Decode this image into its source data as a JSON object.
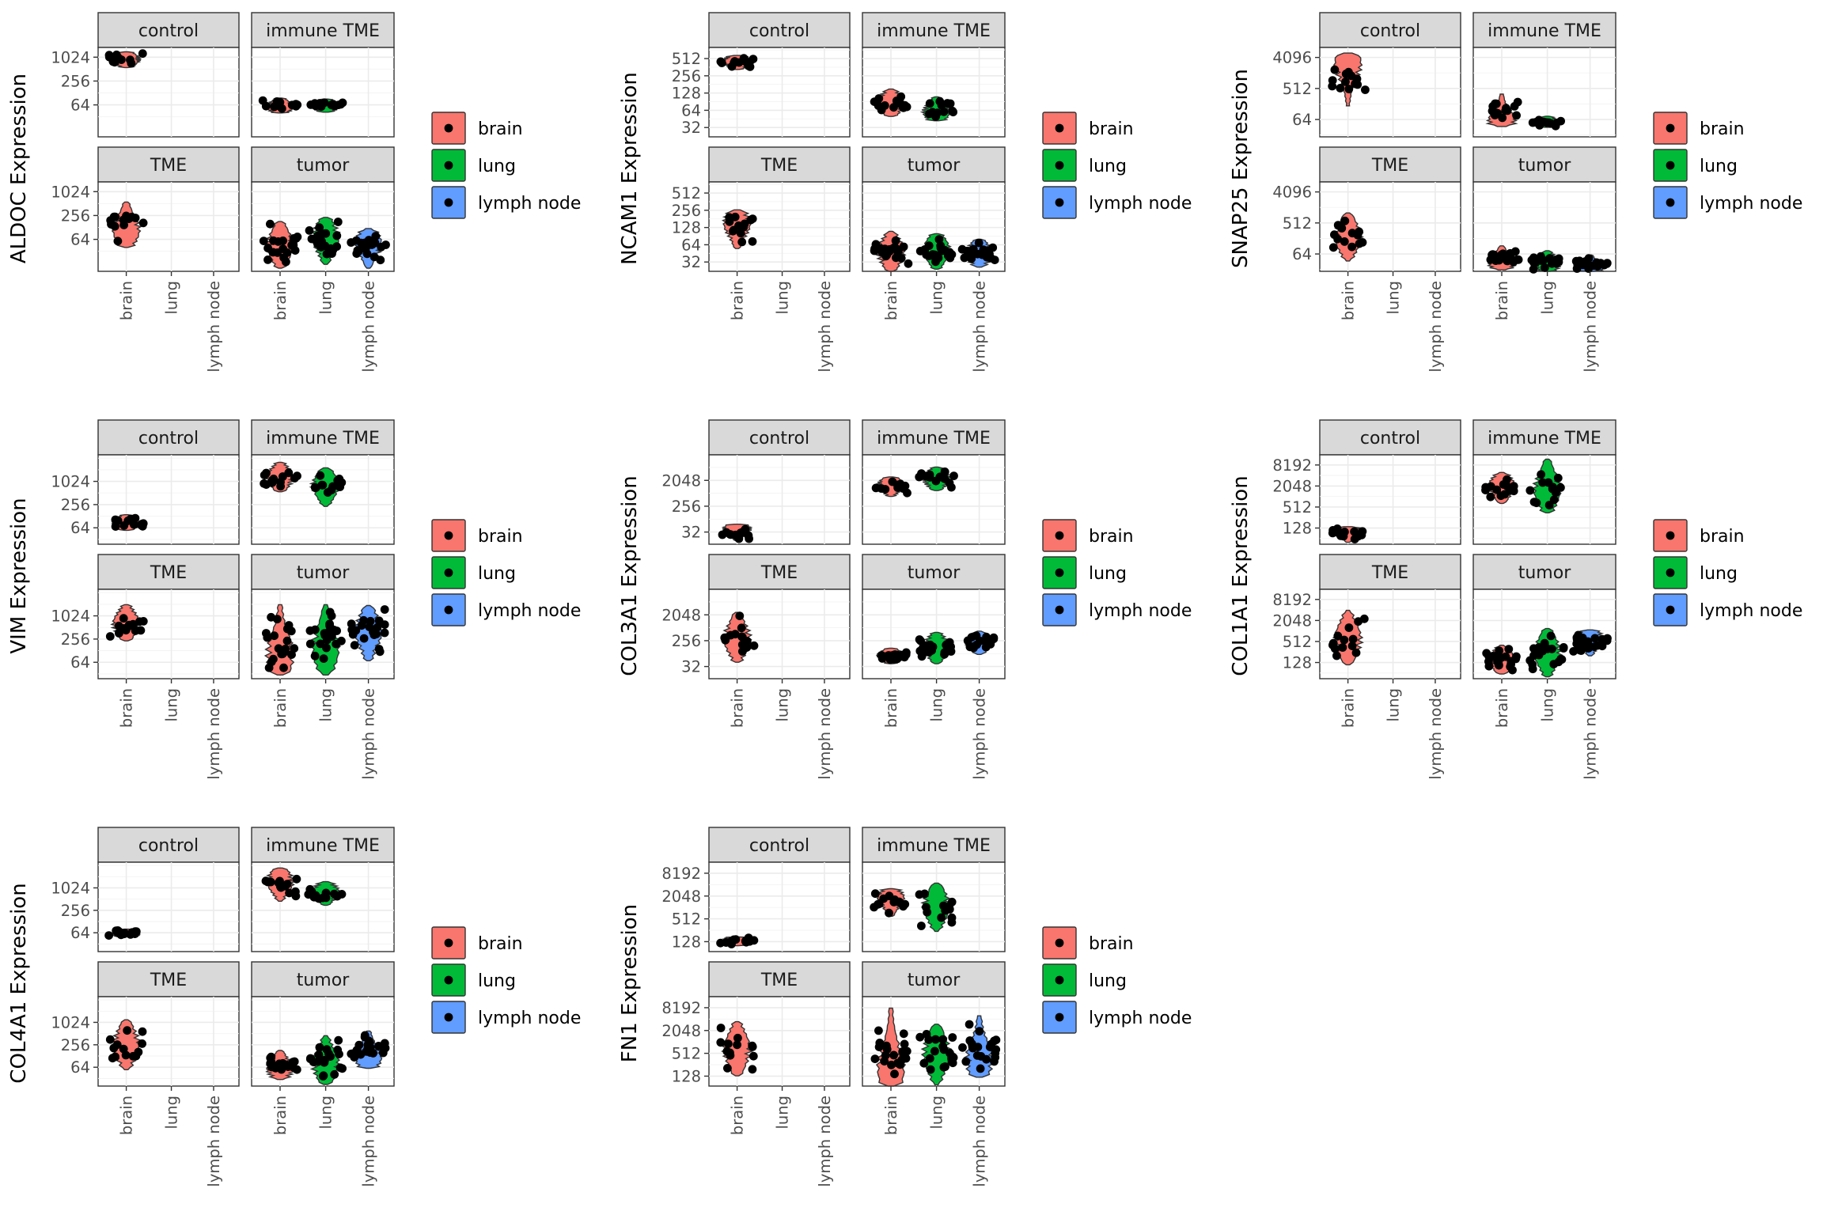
{
  "legend": {
    "items": [
      {
        "label": "brain",
        "color": "#F8766D"
      },
      {
        "label": "lung",
        "color": "#00BA38"
      },
      {
        "label": "lymph node",
        "color": "#619CFF"
      }
    ]
  },
  "facet_order": [
    "control",
    "immune TME",
    "TME",
    "tumor"
  ],
  "x_categories": [
    "brain",
    "lung",
    "lymph node"
  ],
  "chart_data": [
    {
      "type": "violin",
      "gene": "ALDOC",
      "ylabel": "ALDOC Expression",
      "y_scale": "log2",
      "ylim": [
        10,
        1800
      ],
      "yticks": [
        64,
        256,
        1024
      ],
      "facets": {
        "control": [
          {
            "category": "brain",
            "median": 900,
            "min": 560,
            "max": 1400
          }
        ],
        "immune TME": [
          {
            "category": "brain",
            "median": 58,
            "min": 40,
            "max": 95
          },
          {
            "category": "lung",
            "median": 60,
            "min": 42,
            "max": 90
          }
        ],
        "TME": [
          {
            "category": "brain",
            "median": 110,
            "min": 40,
            "max": 560
          }
        ],
        "tumor": [
          {
            "category": "brain",
            "median": 45,
            "min": 12,
            "max": 180
          },
          {
            "category": "lung",
            "median": 70,
            "min": 15,
            "max": 230
          },
          {
            "category": "lymph node",
            "median": 50,
            "min": 12,
            "max": 120
          }
        ]
      }
    },
    {
      "type": "violin",
      "gene": "NCAM1",
      "ylabel": "NCAM1 Expression",
      "y_scale": "log2",
      "ylim": [
        22,
        800
      ],
      "yticks": [
        32,
        64,
        128,
        256,
        512
      ],
      "facets": {
        "control": [
          {
            "category": "brain",
            "median": 460,
            "min": 330,
            "max": 580
          }
        ],
        "immune TME": [
          {
            "category": "brain",
            "median": 85,
            "min": 50,
            "max": 150
          },
          {
            "category": "lung",
            "median": 60,
            "min": 42,
            "max": 110
          }
        ],
        "TME": [
          {
            "category": "brain",
            "median": 150,
            "min": 55,
            "max": 260
          }
        ],
        "tumor": [
          {
            "category": "brain",
            "median": 48,
            "min": 22,
            "max": 110
          },
          {
            "category": "lung",
            "median": 52,
            "min": 24,
            "max": 100
          },
          {
            "category": "lymph node",
            "median": 45,
            "min": 26,
            "max": 80
          }
        ]
      }
    },
    {
      "type": "violin",
      "gene": "SNAP25",
      "ylabel": "SNAP25 Expression",
      "y_scale": "log2",
      "ylim": [
        20,
        8000
      ],
      "yticks": [
        64,
        512,
        4096
      ],
      "facets": {
        "control": [
          {
            "category": "brain",
            "median": 2700,
            "min": 160,
            "max": 5500
          }
        ],
        "immune TME": [
          {
            "category": "brain",
            "median": 60,
            "min": 40,
            "max": 350
          },
          {
            "category": "lung",
            "median": 50,
            "min": 38,
            "max": 80
          }
        ],
        "TME": [
          {
            "category": "brain",
            "median": 200,
            "min": 40,
            "max": 1000
          }
        ],
        "tumor": [
          {
            "category": "brain",
            "median": 36,
            "min": 22,
            "max": 110
          },
          {
            "category": "lung",
            "median": 34,
            "min": 20,
            "max": 80
          },
          {
            "category": "lymph node",
            "median": 26,
            "min": 20,
            "max": 60
          }
        ]
      }
    },
    {
      "type": "violin",
      "gene": "VIM",
      "ylabel": "VIM Expression",
      "y_scale": "log2",
      "ylim": [
        24,
        5000
      ],
      "yticks": [
        64,
        256,
        1024
      ],
      "facets": {
        "control": [
          {
            "category": "brain",
            "median": 85,
            "min": 55,
            "max": 140
          }
        ],
        "immune TME": [
          {
            "category": "brain",
            "median": 1300,
            "min": 550,
            "max": 3200
          },
          {
            "category": "lung",
            "median": 800,
            "min": 230,
            "max": 2300
          }
        ],
        "TME": [
          {
            "category": "brain",
            "median": 650,
            "min": 230,
            "max": 2000
          }
        ],
        "tumor": [
          {
            "category": "brain",
            "median": 100,
            "min": 30,
            "max": 2000
          },
          {
            "category": "lung",
            "median": 150,
            "min": 30,
            "max": 2000
          },
          {
            "category": "lymph node",
            "median": 400,
            "min": 70,
            "max": 1900
          }
        ]
      }
    },
    {
      "type": "violin",
      "gene": "COL3A1",
      "ylabel": "COL3A1 Expression",
      "y_scale": "log2",
      "ylim": [
        12,
        16000
      ],
      "yticks": [
        32,
        256,
        2048
      ],
      "facets": {
        "control": [
          {
            "category": "brain",
            "median": 42,
            "min": 16,
            "max": 60
          }
        ],
        "immune TME": [
          {
            "category": "brain",
            "median": 1400,
            "min": 560,
            "max": 2700
          },
          {
            "category": "lung",
            "median": 2300,
            "min": 900,
            "max": 6000
          }
        ],
        "TME": [
          {
            "category": "brain",
            "median": 300,
            "min": 45,
            "max": 2500
          }
        ],
        "tumor": [
          {
            "category": "brain",
            "median": 75,
            "min": 40,
            "max": 140
          },
          {
            "category": "lung",
            "median": 150,
            "min": 40,
            "max": 500
          },
          {
            "category": "lymph node",
            "median": 220,
            "min": 85,
            "max": 550
          }
        ]
      }
    },
    {
      "type": "violin",
      "gene": "COL1A1",
      "ylabel": "COL1A1 Expression",
      "y_scale": "log2",
      "ylim": [
        44,
        16000
      ],
      "yticks": [
        128,
        512,
        2048,
        8192
      ],
      "facets": {
        "control": [
          {
            "category": "brain",
            "median": 110,
            "min": 50,
            "max": 140
          }
        ],
        "immune TME": [
          {
            "category": "brain",
            "median": 2000,
            "min": 650,
            "max": 5000
          },
          {
            "category": "lung",
            "median": 1600,
            "min": 350,
            "max": 12000
          }
        ],
        "TME": [
          {
            "category": "brain",
            "median": 600,
            "min": 110,
            "max": 4000
          }
        ],
        "tumor": [
          {
            "category": "brain",
            "median": 150,
            "min": 60,
            "max": 400
          },
          {
            "category": "lung",
            "median": 250,
            "min": 50,
            "max": 1200
          },
          {
            "category": "lymph node",
            "median": 600,
            "min": 200,
            "max": 1100
          }
        ]
      }
    },
    {
      "type": "violin",
      "gene": "COL4A1",
      "ylabel": "COL4A1 Expression",
      "y_scale": "log2",
      "ylim": [
        20,
        5000
      ],
      "yticks": [
        64,
        256,
        1024
      ],
      "facets": {
        "control": [
          {
            "category": "brain",
            "median": 60,
            "min": 50,
            "max": 80
          }
        ],
        "immune TME": [
          {
            "category": "brain",
            "median": 1500,
            "min": 450,
            "max": 3500
          },
          {
            "category": "lung",
            "median": 800,
            "min": 350,
            "max": 1500
          }
        ],
        "TME": [
          {
            "category": "brain",
            "median": 250,
            "min": 55,
            "max": 1200
          }
        ],
        "tumor": [
          {
            "category": "brain",
            "median": 60,
            "min": 30,
            "max": 180
          },
          {
            "category": "lung",
            "median": 80,
            "min": 22,
            "max": 450
          },
          {
            "category": "lymph node",
            "median": 120,
            "min": 60,
            "max": 600
          }
        ]
      }
    },
    {
      "type": "violin",
      "gene": "FN1",
      "ylabel": "FN1 Expression",
      "y_scale": "log2",
      "ylim": [
        70,
        16000
      ],
      "yticks": [
        128,
        512,
        2048,
        8192
      ],
      "facets": {
        "control": [
          {
            "category": "brain",
            "median": 140,
            "min": 100,
            "max": 170
          }
        ],
        "immune TME": [
          {
            "category": "brain",
            "median": 1800,
            "min": 600,
            "max": 3200
          },
          {
            "category": "lung",
            "median": 1100,
            "min": 240,
            "max": 4500
          }
        ],
        "TME": [
          {
            "category": "brain",
            "median": 650,
            "min": 130,
            "max": 3500
          }
        ],
        "tumor": [
          {
            "category": "brain",
            "median": 200,
            "min": 70,
            "max": 8000
          },
          {
            "category": "lung",
            "median": 500,
            "min": 75,
            "max": 3000
          },
          {
            "category": "lymph node",
            "median": 350,
            "min": 120,
            "max": 5000
          }
        ]
      }
    }
  ]
}
